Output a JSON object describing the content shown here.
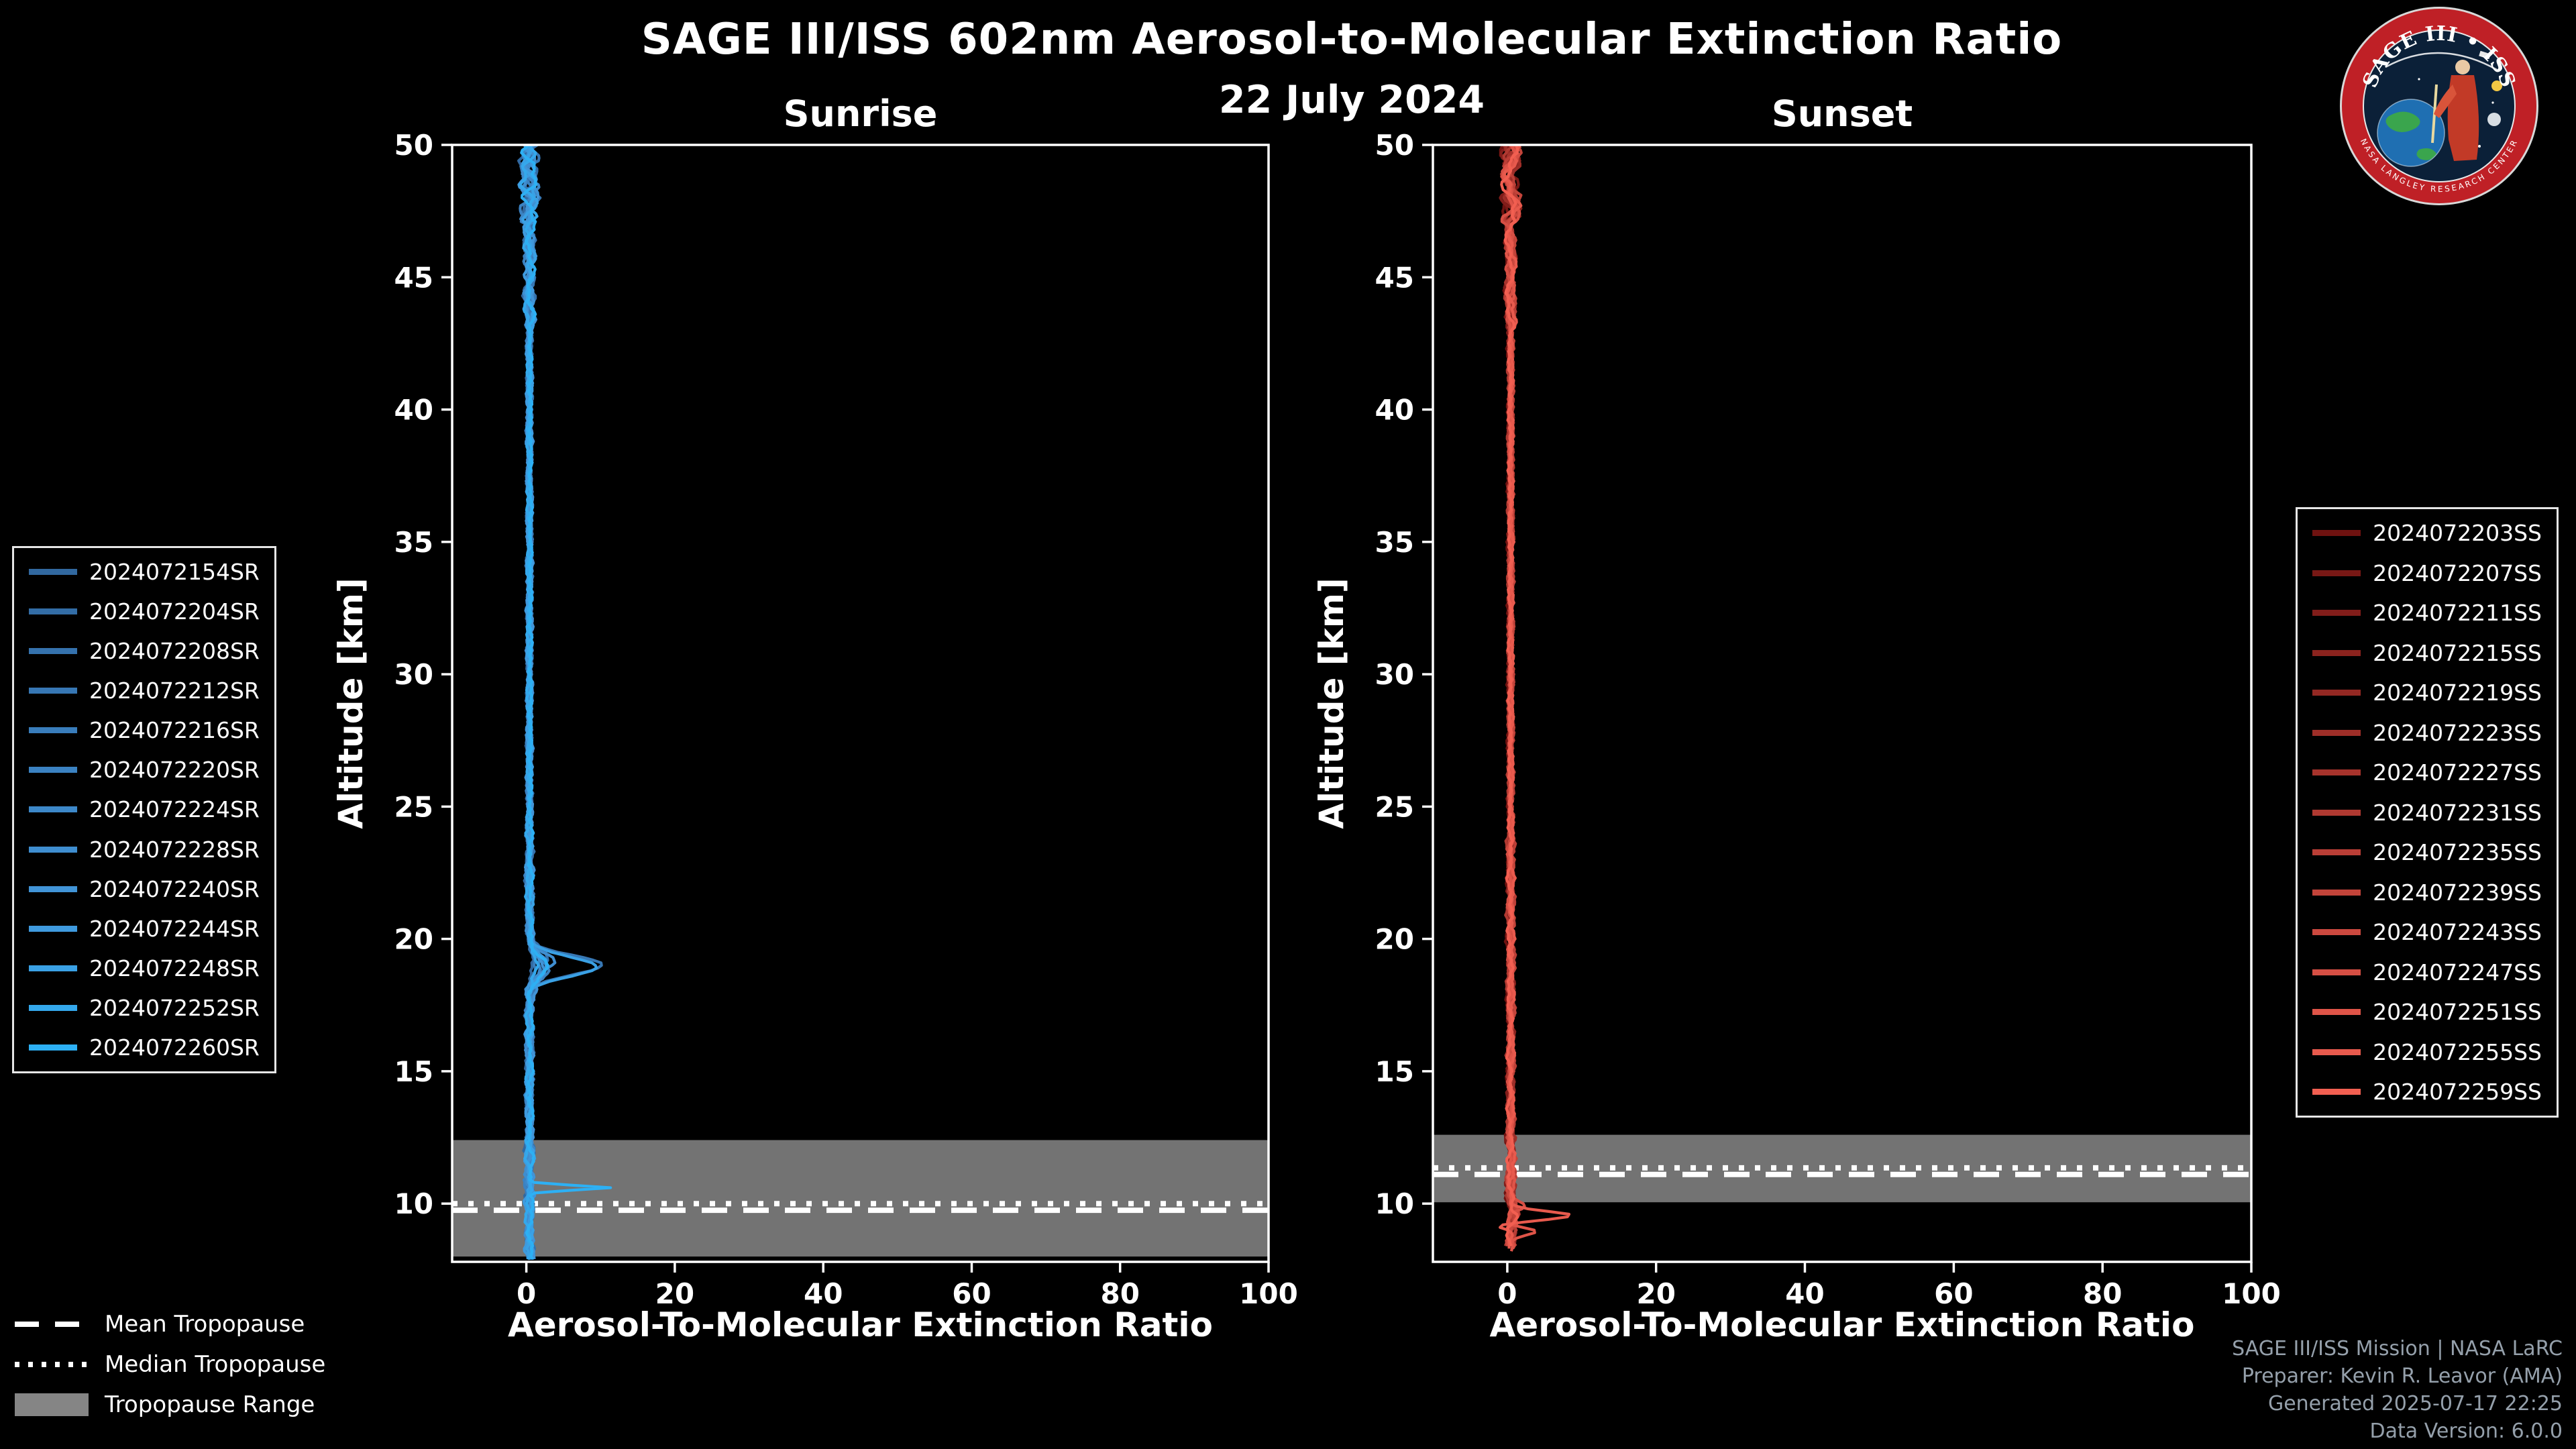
{
  "header": {
    "title": "SAGE III/ISS 602nm Aerosol-to-Molecular Extinction Ratio",
    "date": "22 July 2024"
  },
  "logo": {
    "arc_title": "SAGE III • ISS",
    "ring_text": "NASA LANGLEY RESEARCH CENTER"
  },
  "tropopause_legend": {
    "mean": "Mean Tropopause",
    "median": "Median Tropopause",
    "range": "Tropopause Range"
  },
  "footer": {
    "lines": [
      "SAGE III/ISS Mission | NASA LaRC",
      "Preparer: Kevin R. Leavor (AMA)",
      "Generated 2025-07-17 22:25",
      "Data Version: 6.0.0"
    ]
  },
  "chart_data": [
    {
      "type": "line",
      "title": "Sunrise",
      "xlabel": "Aerosol-To-Molecular Extinction Ratio",
      "ylabel": "Altitude [km]",
      "xlim": [
        -10,
        100
      ],
      "ylim": [
        7.8,
        50
      ],
      "xticks": [
        0,
        20,
        40,
        60,
        80,
        100
      ],
      "yticks": [
        10,
        15,
        20,
        25,
        30,
        35,
        40,
        45,
        50
      ],
      "grid": false,
      "legend_position": "outside-left",
      "profile_end_alt_default": 7.82,
      "tropopause": {
        "mean_km": 9.75,
        "median_km": 10.0,
        "range_km": [
          8.0,
          12.4
        ]
      },
      "base_profile_keypoints": [
        [
          50,
          0.3
        ],
        [
          45,
          0.3
        ],
        [
          40,
          0.25
        ],
        [
          35,
          0.25
        ],
        [
          30,
          0.3
        ],
        [
          25,
          0.3
        ],
        [
          21,
          0.4
        ],
        [
          19,
          2.5
        ],
        [
          17,
          0.4
        ],
        [
          12,
          0.4
        ],
        [
          10.6,
          0.8
        ],
        [
          9,
          0.3
        ],
        [
          8,
          0.2
        ]
      ],
      "features": [
        {
          "altitude_km": 19.0,
          "max_ratio": 9.6,
          "description": "aerosol layer loop"
        },
        {
          "altitude_km": 10.6,
          "max_ratio": 11.3,
          "description": "near-tropopause spike"
        }
      ],
      "series": [
        {
          "name": "2024072154SR",
          "color": "#31689f",
          "seed": 1,
          "bump": [
            0.9,
            19.2,
            0.7
          ]
        },
        {
          "name": "2024072204SR",
          "color": "#336da6",
          "seed": 2,
          "bump": [
            1.6,
            18.8,
            0.6
          ]
        },
        {
          "name": "2024072208SR",
          "color": "#3572ad",
          "seed": 3,
          "bump": [
            2.3,
            19.1,
            0.65
          ]
        },
        {
          "name": "2024072212SR",
          "color": "#3777b4",
          "seed": 4,
          "bump": [
            9.6,
            19.0,
            0.5
          ]
        },
        {
          "name": "2024072216SR",
          "color": "#397dbb",
          "seed": 5,
          "bump": [
            1.1,
            19.3,
            0.7
          ]
        },
        {
          "name": "2024072220SR",
          "color": "#3b82c2",
          "seed": 6,
          "bump": [
            2.9,
            18.9,
            0.55
          ]
        },
        {
          "name": "2024072224SR",
          "color": "#3d88c9",
          "seed": 7,
          "bump": [
            1.4,
            19.0,
            0.6
          ]
        },
        {
          "name": "2024072228SR",
          "color": "#3f8ed0",
          "seed": 8,
          "bump": [
            3.3,
            19.15,
            0.5
          ]
        },
        {
          "name": "2024072240SR",
          "color": "#4194d7",
          "seed": 9,
          "bump": [
            1.9,
            18.85,
            0.65
          ]
        },
        {
          "name": "2024072244SR",
          "color": "#3f9ade",
          "seed": 10,
          "bump": [
            2.5,
            19.05,
            0.6
          ]
        },
        {
          "name": "2024072248SR",
          "color": "#3aa1e5",
          "seed": 11,
          "bump": [
            8.8,
            18.95,
            0.5
          ]
        },
        {
          "name": "2024072252SR",
          "color": "#34a8ec",
          "seed": 12,
          "bump": [
            1.3,
            19.1,
            0.6
          ]
        },
        {
          "name": "2024072260SR",
          "color": "#2db0f4",
          "seed": 13,
          "bump": [
            2.1,
            19.0,
            0.55
          ],
          "spike": [
            11.3,
            10.6,
            0.12
          ]
        }
      ]
    },
    {
      "type": "line",
      "title": "Sunset",
      "xlabel": "Aerosol-To-Molecular Extinction Ratio",
      "ylabel": "Altitude [km]",
      "xlim": [
        -10,
        100
      ],
      "ylim": [
        7.8,
        50
      ],
      "xticks": [
        0,
        20,
        40,
        60,
        80,
        100
      ],
      "yticks": [
        10,
        15,
        20,
        25,
        30,
        35,
        40,
        45,
        50
      ],
      "grid": false,
      "legend_position": "outside-right",
      "profile_end_alt_default": 8.35,
      "tropopause": {
        "mean_km": 11.1,
        "median_km": 11.35,
        "range_km": [
          10.05,
          12.6
        ]
      },
      "base_profile_keypoints": [
        [
          50,
          0.4
        ],
        [
          45,
          0.3
        ],
        [
          40,
          0.3
        ],
        [
          35,
          0.25
        ],
        [
          30,
          0.25
        ],
        [
          25,
          0.3
        ],
        [
          20,
          0.3
        ],
        [
          15,
          0.35
        ],
        [
          12,
          0.4
        ],
        [
          9.9,
          1.0
        ],
        [
          9.5,
          2.0
        ],
        [
          8.9,
          1.0
        ],
        [
          8.4,
          0.3
        ]
      ],
      "features": [
        {
          "altitude_km": 9.55,
          "max_ratio": 7.5,
          "description": "near-tropopause bump"
        }
      ],
      "series": [
        {
          "name": "2024072203SS",
          "color": "#6f1210",
          "seed": 21,
          "bump": [
            0.5,
            9.6,
            0.3
          ]
        },
        {
          "name": "2024072207SS",
          "color": "#781815",
          "seed": 22,
          "bump": [
            0.4,
            10.1,
            0.25
          ]
        },
        {
          "name": "2024072211SS",
          "color": "#821d1a",
          "seed": 23,
          "bump": [
            0.7,
            9.3,
            0.3
          ]
        },
        {
          "name": "2024072215SS",
          "color": "#8b231e",
          "seed": 24,
          "bump": [
            0.3,
            9.8,
            0.25
          ]
        },
        {
          "name": "2024072219SS",
          "color": "#942823",
          "seed": 25,
          "bump": [
            0.6,
            9.5,
            0.3
          ]
        },
        {
          "name": "2024072223SS",
          "color": "#9e2e28",
          "seed": 26,
          "bump": [
            0.4,
            9.2,
            0.25
          ]
        },
        {
          "name": "2024072227SS",
          "color": "#a7332c",
          "seed": 27,
          "bump": [
            0.8,
            9.7,
            0.3
          ]
        },
        {
          "name": "2024072231SS",
          "color": "#b03931",
          "seed": 28,
          "bump": [
            0.5,
            9.4,
            0.25
          ]
        },
        {
          "name": "2024072235SS",
          "color": "#ba3e36",
          "seed": 29,
          "bump": [
            0.6,
            9.9,
            0.3
          ]
        },
        {
          "name": "2024072239SS",
          "color": "#c3443a",
          "seed": 30,
          "bump": [
            0.7,
            9.3,
            0.25
          ]
        },
        {
          "name": "2024072243SS",
          "color": "#cc493f",
          "seed": 31,
          "bump": [
            0.9,
            9.6,
            0.3
          ]
        },
        {
          "name": "2024072247SS",
          "color": "#d64f44",
          "seed": 32,
          "bump": [
            2.0,
            9.9,
            0.2
          ],
          "end_alt": 8.2
        },
        {
          "name": "2024072251SS",
          "color": "#df5448",
          "seed": 33,
          "bump": [
            3.5,
            8.95,
            0.18
          ],
          "end_alt": 8.15
        },
        {
          "name": "2024072255SS",
          "color": "#e85a4d",
          "seed": 34,
          "bump": [
            7.5,
            9.55,
            0.22
          ],
          "bump2": [
            -2.0,
            9.15,
            0.15
          ],
          "end_alt": 8.2
        },
        {
          "name": "2024072259SS",
          "color": "#f25f51",
          "seed": 35,
          "bump": [
            1.2,
            9.5,
            0.25
          ],
          "end_alt": 8.3
        }
      ]
    }
  ]
}
